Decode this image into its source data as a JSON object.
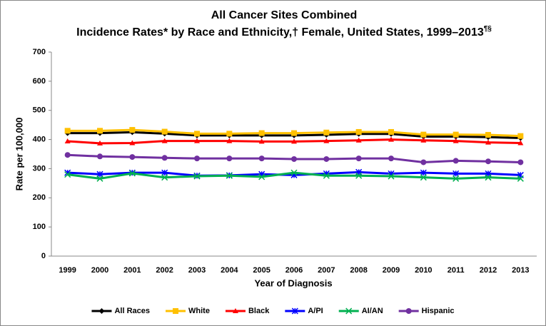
{
  "chart_data": {
    "type": "line",
    "title": "All Cancer Sites Combined",
    "subtitle": "Incidence Rates* by Race and Ethnicity,† Female, United States, 1999–2013",
    "subtitle_note": "¶§",
    "xlabel": "Year of Diagnosis",
    "ylabel": "Rate per 100,000",
    "categories": [
      "1999",
      "2000",
      "2001",
      "2002",
      "2003",
      "2004",
      "2005",
      "2006",
      "2007",
      "2008",
      "2009",
      "2010",
      "2011",
      "2012",
      "2013"
    ],
    "series": [
      {
        "name": "All Races",
        "color": "#000000",
        "marker": "diamond",
        "values": [
          422,
          422,
          425,
          420,
          414,
          414,
          414,
          414,
          416,
          419,
          419,
          410,
          410,
          408,
          405
        ]
      },
      {
        "name": "White",
        "color": "#ffc000",
        "marker": "square",
        "values": [
          430,
          430,
          433,
          427,
          420,
          420,
          422,
          422,
          424,
          426,
          426,
          417,
          417,
          416,
          412
        ]
      },
      {
        "name": "Black",
        "color": "#ff0000",
        "marker": "triangle",
        "values": [
          394,
          387,
          388,
          395,
          395,
          395,
          393,
          393,
          395,
          397,
          400,
          397,
          395,
          390,
          388
        ]
      },
      {
        "name": "A/PI",
        "color": "#0000ff",
        "marker": "star",
        "values": [
          286,
          281,
          286,
          286,
          276,
          277,
          281,
          278,
          283,
          288,
          283,
          286,
          283,
          283,
          278
        ]
      },
      {
        "name": "AI/AN",
        "color": "#00b050",
        "marker": "x",
        "values": [
          280,
          266,
          284,
          270,
          274,
          276,
          272,
          286,
          276,
          276,
          274,
          270,
          266,
          270,
          266
        ]
      },
      {
        "name": "Hispanic",
        "color": "#7030a0",
        "marker": "circle",
        "values": [
          347,
          342,
          340,
          337,
          335,
          335,
          335,
          333,
          333,
          335,
          335,
          322,
          327,
          325,
          322
        ]
      }
    ],
    "ylim": [
      0,
      700
    ],
    "yticks": [
      0,
      100,
      200,
      300,
      400,
      500,
      600,
      700
    ],
    "grid": false,
    "legend": "bottom"
  }
}
